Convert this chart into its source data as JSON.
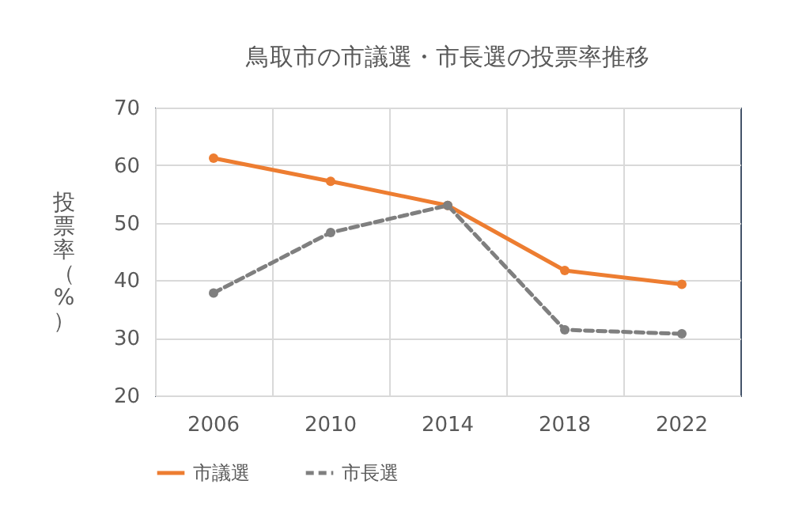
{
  "chart_data": {
    "type": "line",
    "title": "鳥取市の市議選・市長選の投票率推移",
    "ylabel": "投票率（%）",
    "categories": [
      "2006",
      "2010",
      "2014",
      "2018",
      "2022"
    ],
    "series": [
      {
        "name": "市議選",
        "color": "#ed7d31",
        "values": [
          61.2,
          57.2,
          53.0,
          41.7,
          39.3
        ],
        "line_style": "solid"
      },
      {
        "name": "市長選",
        "color": "#7f7f7f",
        "values": [
          37.8,
          48.3,
          53.0,
          31.4,
          30.7
        ],
        "line_style": "dashed"
      }
    ],
    "ylim": [
      20,
      70
    ],
    "yticks": [
      20,
      30,
      40,
      50,
      60,
      70
    ],
    "grid": true,
    "legend": "bottom",
    "marker": "circle"
  }
}
